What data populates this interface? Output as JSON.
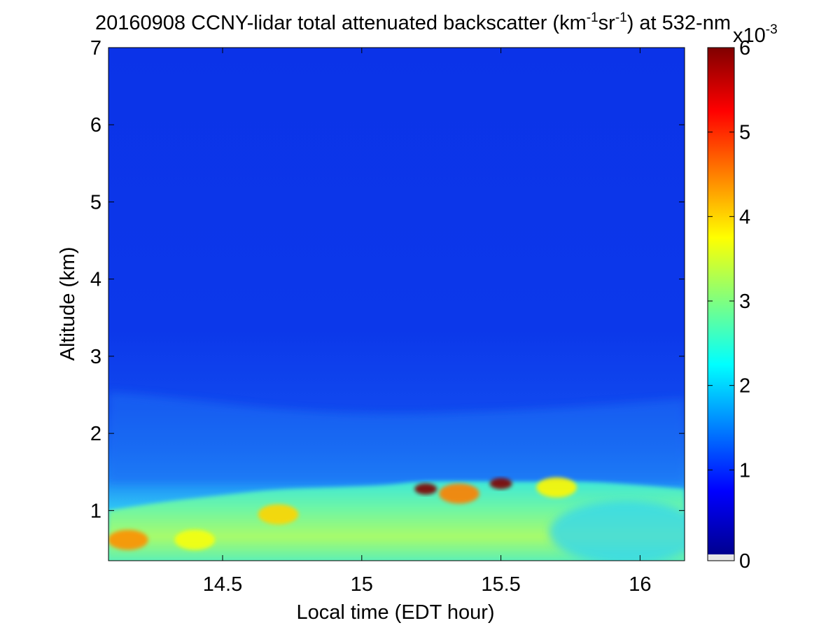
{
  "chart_data": {
    "type": "heatmap",
    "title": {
      "prefix": "20160908 CCNY-lidar total attenuated backscatter (km",
      "sup1": "-1",
      "mid": "sr",
      "sup2": "-1",
      "suffix": ") at 532-nm"
    },
    "xlabel": "Local time (EDT hour)",
    "ylabel": "Altitude (km)",
    "xlim": [
      14.09,
      16.16
    ],
    "ylim": [
      0.35,
      7
    ],
    "x_ticks": [
      14.5,
      15,
      15.5,
      16
    ],
    "x_tick_labels": [
      "14.5",
      "15",
      "15.5",
      "16"
    ],
    "y_ticks": [
      1,
      2,
      3,
      4,
      5,
      6,
      7
    ],
    "y_tick_labels": [
      "1",
      "2",
      "3",
      "4",
      "5",
      "6",
      "7"
    ],
    "colorbar": {
      "colormap": "jet",
      "range": [
        0,
        6
      ],
      "ticks": [
        0,
        1,
        2,
        3,
        4,
        5,
        6
      ],
      "tick_labels": [
        "0",
        "1",
        "2",
        "3",
        "4",
        "5",
        "6"
      ],
      "exponent_base": "x10",
      "exponent_power": "-3"
    },
    "boundary_layer_top_km": [
      {
        "time": 14.09,
        "alt": 1.0
      },
      {
        "time": 14.3,
        "alt": 1.12
      },
      {
        "time": 14.5,
        "alt": 1.2
      },
      {
        "time": 14.7,
        "alt": 1.28
      },
      {
        "time": 14.9,
        "alt": 1.3
      },
      {
        "time": 15.1,
        "alt": 1.33
      },
      {
        "time": 15.2,
        "alt": 1.38
      },
      {
        "time": 15.4,
        "alt": 1.38
      },
      {
        "time": 15.6,
        "alt": 1.37
      },
      {
        "time": 15.8,
        "alt": 1.38
      },
      {
        "time": 16.0,
        "alt": 1.33
      },
      {
        "time": 16.16,
        "alt": 1.28
      }
    ],
    "features": [
      {
        "time": 14.16,
        "alt": 0.62,
        "value": 4.4
      },
      {
        "time": 14.4,
        "alt": 0.62,
        "value": 3.7
      },
      {
        "time": 14.7,
        "alt": 0.95,
        "value": 4.0
      },
      {
        "time": 15.23,
        "alt": 1.28,
        "value": 6.0
      },
      {
        "time": 15.5,
        "alt": 1.35,
        "value": 6.0
      },
      {
        "time": 15.35,
        "alt": 1.22,
        "value": 4.5
      },
      {
        "time": 15.7,
        "alt": 1.3,
        "value": 3.8
      }
    ]
  }
}
